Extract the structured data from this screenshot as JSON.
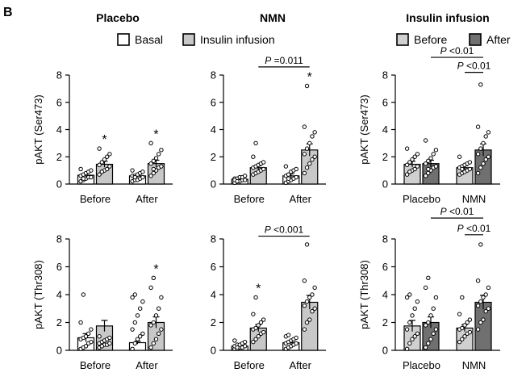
{
  "panel_letter": "B",
  "column_titles": [
    "Placebo",
    "NMN",
    "Insulin infusion"
  ],
  "legend_left": {
    "items": [
      {
        "label": "Basal",
        "color": "#ffffff"
      },
      {
        "label": "Insulin infusion",
        "color": "#c8c8c8"
      }
    ]
  },
  "legend_right": {
    "items": [
      {
        "label": "Before",
        "color": "#d0d0d0"
      },
      {
        "label": "After",
        "color": "#707070"
      }
    ]
  },
  "chart_data": [
    {
      "type": "bar",
      "id": "ser473-placebo",
      "ylabel": "pAKT (Ser473)",
      "ylim": [
        0,
        8
      ],
      "yticks": [
        0,
        2,
        4,
        6,
        8
      ],
      "categories": [
        "Before",
        "After"
      ],
      "series": [
        {
          "name": "Basal",
          "values": [
            0.65,
            0.6
          ],
          "sem": [
            0.12,
            0.1
          ]
        },
        {
          "name": "Insulin infusion",
          "values": [
            1.45,
            1.5
          ],
          "sem": [
            0.22,
            0.25
          ]
        }
      ],
      "points": [
        [
          [
            0.2,
            0.3,
            0.4,
            0.5,
            0.5,
            0.6,
            0.7,
            0.8,
            0.9,
            1.0,
            1.1,
            0.4
          ],
          [
            0.7,
            0.9,
            1.0,
            1.1,
            1.3,
            1.4,
            1.6,
            1.8,
            2.0,
            2.2,
            2.6,
            0.9
          ]
        ],
        [
          [
            0.2,
            0.3,
            0.3,
            0.4,
            0.5,
            0.6,
            0.6,
            0.7,
            0.8,
            0.9,
            1.0,
            0.5
          ],
          [
            0.6,
            0.8,
            1.0,
            1.2,
            1.3,
            1.5,
            1.7,
            1.9,
            2.2,
            2.5,
            3.0,
            1.1
          ]
        ]
      ],
      "annotations": [
        {
          "text": "*",
          "category": 0,
          "series": 1
        },
        {
          "text": "*",
          "category": 1,
          "series": 1
        }
      ]
    },
    {
      "type": "bar",
      "id": "ser473-nmn",
      "ylabel": "",
      "ylim": [
        0,
        8
      ],
      "yticks": [
        0,
        2,
        4,
        6,
        8
      ],
      "categories": [
        "Before",
        "After"
      ],
      "series": [
        {
          "name": "Basal",
          "values": [
            0.35,
            0.6
          ],
          "sem": [
            0.06,
            0.15
          ]
        },
        {
          "name": "Insulin infusion",
          "values": [
            1.2,
            2.5
          ],
          "sem": [
            0.15,
            0.45
          ]
        }
      ],
      "points": [
        [
          [
            0.1,
            0.2,
            0.2,
            0.3,
            0.3,
            0.4,
            0.4,
            0.5,
            0.5,
            0.6,
            0.3,
            0.2
          ],
          [
            0.7,
            0.8,
            0.9,
            1.0,
            1.1,
            1.2,
            1.3,
            1.4,
            1.5,
            1.6,
            2.0,
            3.0
          ]
        ],
        [
          [
            0.1,
            0.2,
            0.3,
            0.4,
            0.5,
            0.6,
            0.7,
            0.9,
            1.0,
            1.1,
            1.3,
            0.4
          ],
          [
            0.8,
            1.2,
            1.5,
            1.8,
            2.0,
            2.2,
            2.6,
            3.0,
            3.5,
            3.8,
            4.2,
            7.2
          ]
        ]
      ],
      "annotations": [
        {
          "text": "*",
          "category": 1,
          "series": 1
        }
      ],
      "brackets": [
        {
          "text": "P =0.011",
          "from": [
            0,
            1
          ],
          "to": [
            1,
            1
          ],
          "y": 8.6
        }
      ]
    },
    {
      "type": "bar",
      "id": "ser473-insulin",
      "ylabel": "pAKT (Ser473)",
      "ylim": [
        0,
        8
      ],
      "yticks": [
        0,
        2,
        4,
        6,
        8
      ],
      "categories": [
        "Placebo",
        "NMN"
      ],
      "series": [
        {
          "name": "Before",
          "values": [
            1.45,
            1.2
          ],
          "sem": [
            0.22,
            0.15
          ]
        },
        {
          "name": "After",
          "values": [
            1.5,
            2.5
          ],
          "sem": [
            0.25,
            0.45
          ]
        }
      ],
      "points": [
        [
          [
            0.7,
            0.9,
            1.0,
            1.1,
            1.3,
            1.4,
            1.6,
            1.8,
            2.0,
            2.2,
            2.6,
            0.9
          ],
          [
            0.6,
            0.8,
            1.0,
            1.2,
            1.3,
            1.5,
            1.7,
            1.9,
            2.2,
            2.5,
            3.2,
            1.1
          ]
        ],
        [
          [
            0.7,
            0.8,
            0.9,
            1.0,
            1.1,
            1.2,
            1.3,
            1.4,
            1.5,
            1.6,
            2.0,
            1.1
          ],
          [
            0.8,
            1.2,
            1.5,
            1.8,
            2.0,
            2.2,
            2.6,
            3.0,
            3.5,
            3.8,
            4.2,
            7.3
          ]
        ]
      ],
      "brackets": [
        {
          "text": "P <0.01",
          "from": [
            0,
            1
          ],
          "to": [
            1,
            1
          ],
          "y": 9.3
        },
        {
          "text": "P <0.01",
          "from": [
            1,
            0
          ],
          "to": [
            1,
            1
          ],
          "y": 8.2
        }
      ]
    },
    {
      "type": "bar",
      "id": "thr308-placebo",
      "ylabel": "pAKT (Thr308)",
      "ylim": [
        0,
        8
      ],
      "yticks": [
        0,
        2,
        4,
        6,
        8
      ],
      "categories": [
        "Before",
        "After"
      ],
      "series": [
        {
          "name": "Basal",
          "values": [
            0.9,
            0.55
          ],
          "sem": [
            0.3,
            0.1
          ]
        },
        {
          "name": "Insulin infusion",
          "values": [
            1.75,
            2.0
          ],
          "sem": [
            0.4,
            0.4
          ]
        }
      ],
      "points": [
        [
          [
            0.1,
            0.2,
            0.3,
            0.5,
            0.6,
            0.8,
            0.9,
            1.0,
            1.2,
            1.5,
            2.0,
            4.0
          ],
          [
            0.2,
            0.3,
            0.4,
            0.4,
            0.5,
            0.5,
            0.6,
            0.7,
            0.8,
            0.9,
            1.0,
            0.3
          ]
        ],
        [
          [
            0.1,
            0.5,
            0.8,
            1.0,
            1.2,
            1.5,
            2.0,
            2.5,
            3.0,
            3.5,
            3.8,
            4.0
          ],
          [
            0.2,
            0.5,
            0.8,
            1.2,
            1.5,
            1.8,
            2.0,
            2.5,
            3.0,
            3.8,
            4.5,
            5.2
          ]
        ]
      ],
      "annotations": [
        {
          "text": "*",
          "category": 1,
          "series": 1
        }
      ]
    },
    {
      "type": "bar",
      "id": "thr308-nmn",
      "ylabel": "",
      "ylim": [
        0,
        8
      ],
      "yticks": [
        0,
        2,
        4,
        6,
        8
      ],
      "categories": [
        "Before",
        "After"
      ],
      "series": [
        {
          "name": "Basal",
          "values": [
            0.3,
            0.55
          ],
          "sem": [
            0.07,
            0.12
          ]
        },
        {
          "name": "Insulin infusion",
          "values": [
            1.6,
            3.45
          ],
          "sem": [
            0.25,
            0.5
          ]
        }
      ],
      "points": [
        [
          [
            0.1,
            0.1,
            0.2,
            0.2,
            0.3,
            0.3,
            0.4,
            0.4,
            0.5,
            0.6,
            0.7,
            0.2
          ],
          [
            0.6,
            0.8,
            1.0,
            1.2,
            1.3,
            1.5,
            1.6,
            1.8,
            2.0,
            2.2,
            2.6,
            3.8
          ]
        ],
        [
          [
            0.1,
            0.2,
            0.3,
            0.4,
            0.5,
            0.5,
            0.6,
            0.7,
            0.8,
            0.9,
            1.0,
            1.1
          ],
          [
            1.5,
            2.0,
            2.2,
            2.8,
            3.0,
            3.2,
            3.5,
            3.8,
            4.0,
            4.5,
            5.0,
            7.6
          ]
        ]
      ],
      "annotations": [
        {
          "text": "*",
          "category": 0,
          "series": 1
        }
      ],
      "brackets": [
        {
          "text": "P <0.001",
          "from": [
            0,
            1
          ],
          "to": [
            1,
            1
          ],
          "y": 8.2
        }
      ]
    },
    {
      "type": "bar",
      "id": "thr308-insulin",
      "ylabel": "pAKT (Thr308)",
      "ylim": [
        0,
        8
      ],
      "yticks": [
        0,
        2,
        4,
        6,
        8
      ],
      "categories": [
        "Placebo",
        "NMN"
      ],
      "series": [
        {
          "name": "Before",
          "values": [
            1.75,
            1.6
          ],
          "sem": [
            0.4,
            0.25
          ]
        },
        {
          "name": "After",
          "values": [
            2.0,
            3.45
          ],
          "sem": [
            0.4,
            0.5
          ]
        }
      ],
      "points": [
        [
          [
            0.1,
            0.5,
            0.8,
            1.0,
            1.2,
            1.5,
            2.0,
            2.5,
            3.0,
            3.5,
            3.8,
            4.0
          ],
          [
            0.2,
            0.5,
            0.8,
            1.2,
            1.5,
            1.8,
            2.0,
            2.5,
            3.0,
            3.8,
            4.5,
            5.2
          ]
        ],
        [
          [
            0.6,
            0.8,
            1.0,
            1.2,
            1.3,
            1.5,
            1.6,
            1.8,
            2.0,
            2.2,
            2.6,
            3.8
          ],
          [
            1.5,
            2.0,
            2.2,
            2.8,
            3.0,
            3.2,
            3.5,
            3.8,
            4.0,
            4.5,
            5.0,
            7.6
          ]
        ]
      ],
      "brackets": [
        {
          "text": "P <0.01",
          "from": [
            0,
            1
          ],
          "to": [
            1,
            1
          ],
          "y": 9.5
        },
        {
          "text": "P <0.01",
          "from": [
            1,
            0
          ],
          "to": [
            1,
            1
          ],
          "y": 8.3
        }
      ]
    }
  ]
}
